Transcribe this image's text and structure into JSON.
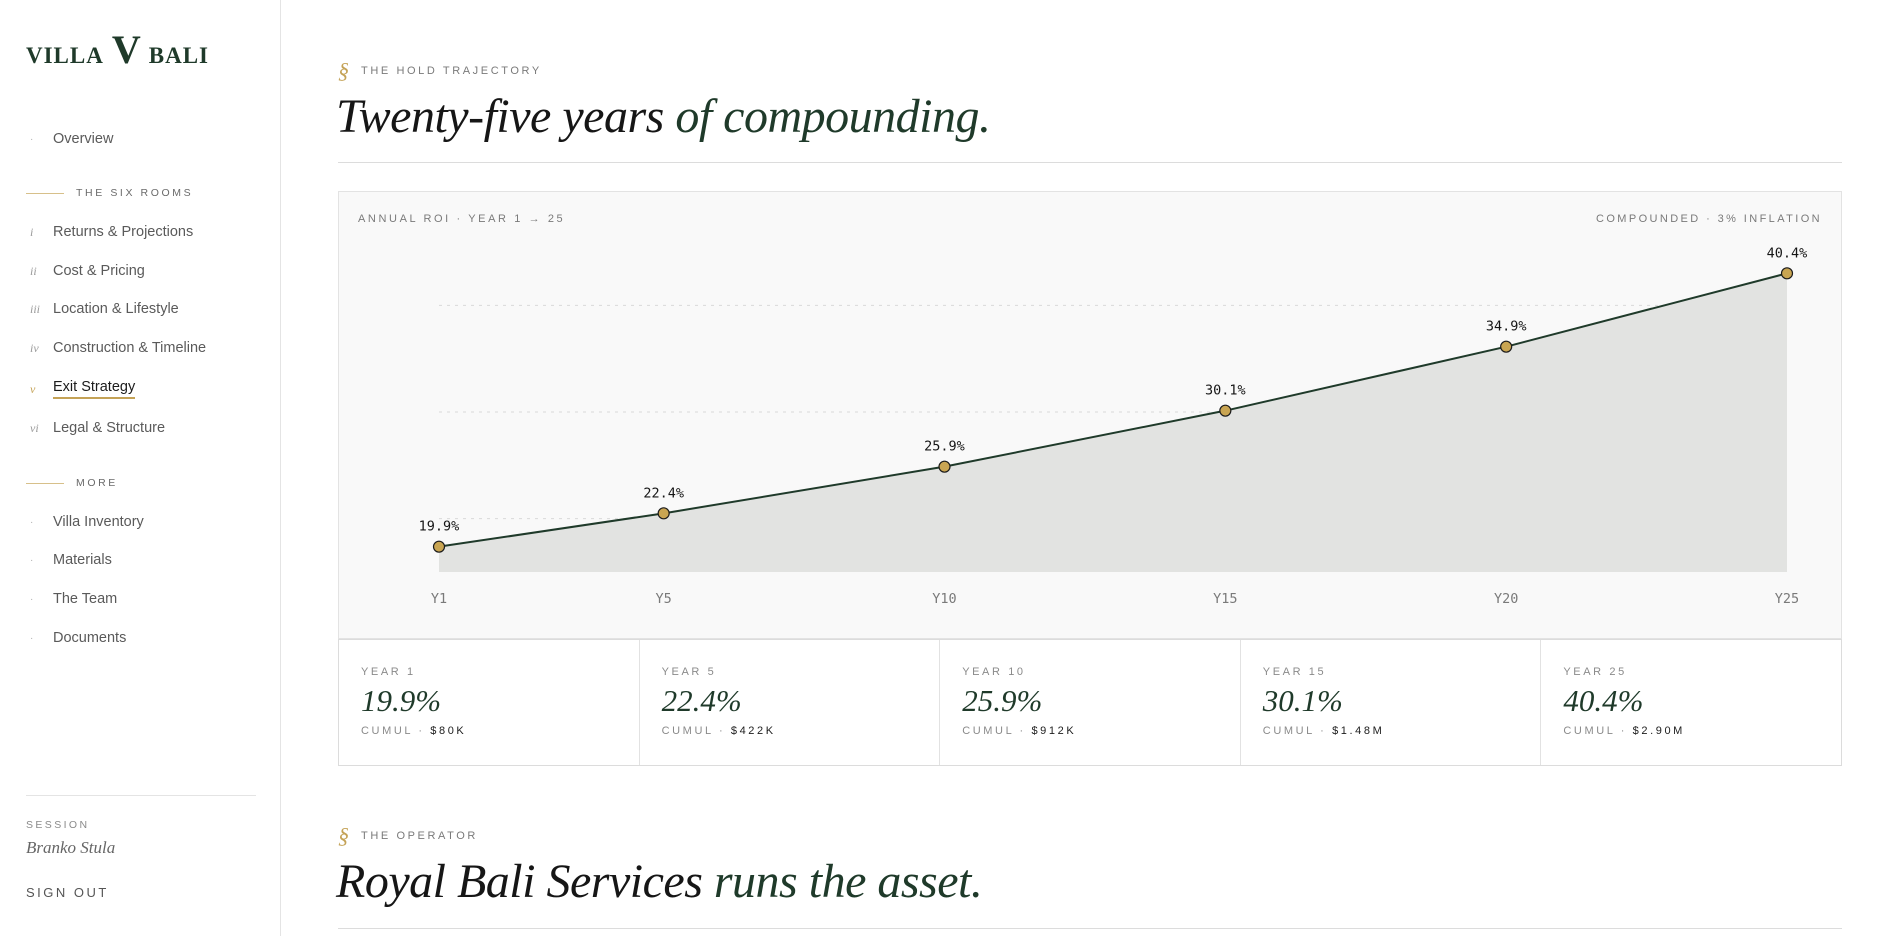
{
  "sidebar": {
    "logo": {
      "left": "VILLA",
      "mark": "V",
      "right": "BALI"
    },
    "overview": "Overview",
    "six_rooms_title": "THE SIX ROOMS",
    "rooms": [
      {
        "num": "i",
        "label": "Returns & Projections"
      },
      {
        "num": "ii",
        "label": "Cost & Pricing"
      },
      {
        "num": "iii",
        "label": "Location & Lifestyle"
      },
      {
        "num": "iv",
        "label": "Construction & Timeline"
      },
      {
        "num": "v",
        "label": "Exit Strategy"
      },
      {
        "num": "vi",
        "label": "Legal & Structure"
      }
    ],
    "more_title": "MORE",
    "more": [
      "Villa Inventory",
      "Materials",
      "The Team",
      "Documents"
    ],
    "session_label": "SESSION",
    "session_user": "Branko Stula",
    "sign_out": "SIGN OUT"
  },
  "section1": {
    "mark": "§",
    "eyebrow": "THE HOLD TRAJECTORY",
    "title_plain": "Twenty-five years",
    "title_accent": "of compounding."
  },
  "chart": {
    "label_left": "ANNUAL ROI · YEAR 1 → 25",
    "label_right": "COMPOUNDED · 3% INFLATION"
  },
  "chart_data": {
    "type": "area",
    "categories": [
      "Y1",
      "Y5",
      "Y10",
      "Y15",
      "Y20",
      "Y25"
    ],
    "x": [
      1,
      5,
      10,
      15,
      20,
      25
    ],
    "values": [
      19.9,
      22.4,
      25.9,
      30.1,
      34.9,
      40.4
    ],
    "data_labels": [
      "19.9%",
      "22.4%",
      "25.9%",
      "30.1%",
      "34.9%",
      "40.4%"
    ],
    "ylim": [
      18,
      42
    ],
    "grid": true,
    "colors": {
      "line": "#1f3a2a",
      "fill": "#e2e3e1",
      "marker": "#c9a552"
    }
  },
  "stats": [
    {
      "key": "YEAR 1",
      "value": "19.9%",
      "cumul_label": "CUMUL · ",
      "cumul": "$80K"
    },
    {
      "key": "YEAR 5",
      "value": "22.4%",
      "cumul_label": "CUMUL · ",
      "cumul": "$422K"
    },
    {
      "key": "YEAR 10",
      "value": "25.9%",
      "cumul_label": "CUMUL · ",
      "cumul": "$912K"
    },
    {
      "key": "YEAR 15",
      "value": "30.1%",
      "cumul_label": "CUMUL · ",
      "cumul": "$1.48M"
    },
    {
      "key": "YEAR 25",
      "value": "40.4%",
      "cumul_label": "CUMUL · ",
      "cumul": "$2.90M"
    }
  ],
  "section2": {
    "mark": "§",
    "eyebrow": "THE OPERATOR",
    "title_plain": "Royal Bali Services",
    "title_accent": "runs the asset."
  }
}
